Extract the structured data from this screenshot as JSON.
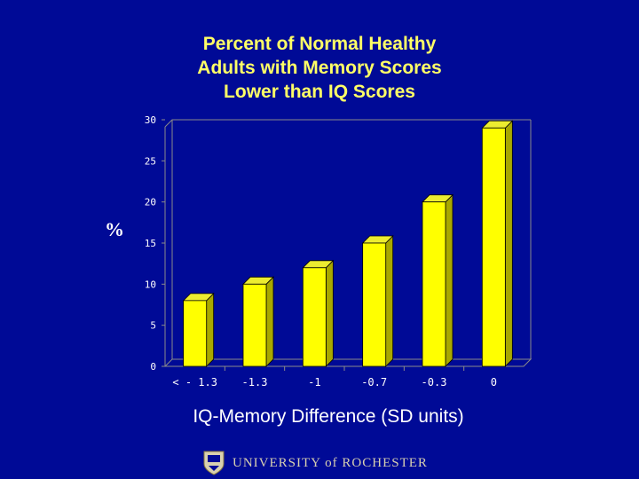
{
  "slide": {
    "title": "Percent of Normal Healthy\nAdults with Memory Scores\nLower than IQ Scores",
    "ylabel": "%",
    "xlabel": "IQ-Memory Difference  (SD units)",
    "footer_text": "UNIVERSITY of ROCHESTER"
  },
  "colors": {
    "background": "#000a96",
    "title": "#ffff66",
    "bar_front": "#ffff00",
    "bar_side": "#a8a800",
    "bar_top": "#ecec30",
    "axis": "#8a8a8a"
  },
  "chart_data": {
    "type": "bar",
    "title": "Percent of Normal Healthy Adults with Memory Scores Lower than IQ Scores",
    "xlabel": "IQ-Memory Difference  (SD units)",
    "ylabel": "%",
    "categories": [
      "< - 1.3",
      "-1.3",
      "-1",
      "-0.7",
      "-0.3",
      "0"
    ],
    "values": [
      8,
      10,
      12,
      15,
      20,
      29
    ],
    "ylim": [
      0,
      30
    ],
    "yticks": [
      0,
      5,
      10,
      15,
      20,
      25,
      30
    ],
    "grid": false,
    "legend": "none"
  }
}
